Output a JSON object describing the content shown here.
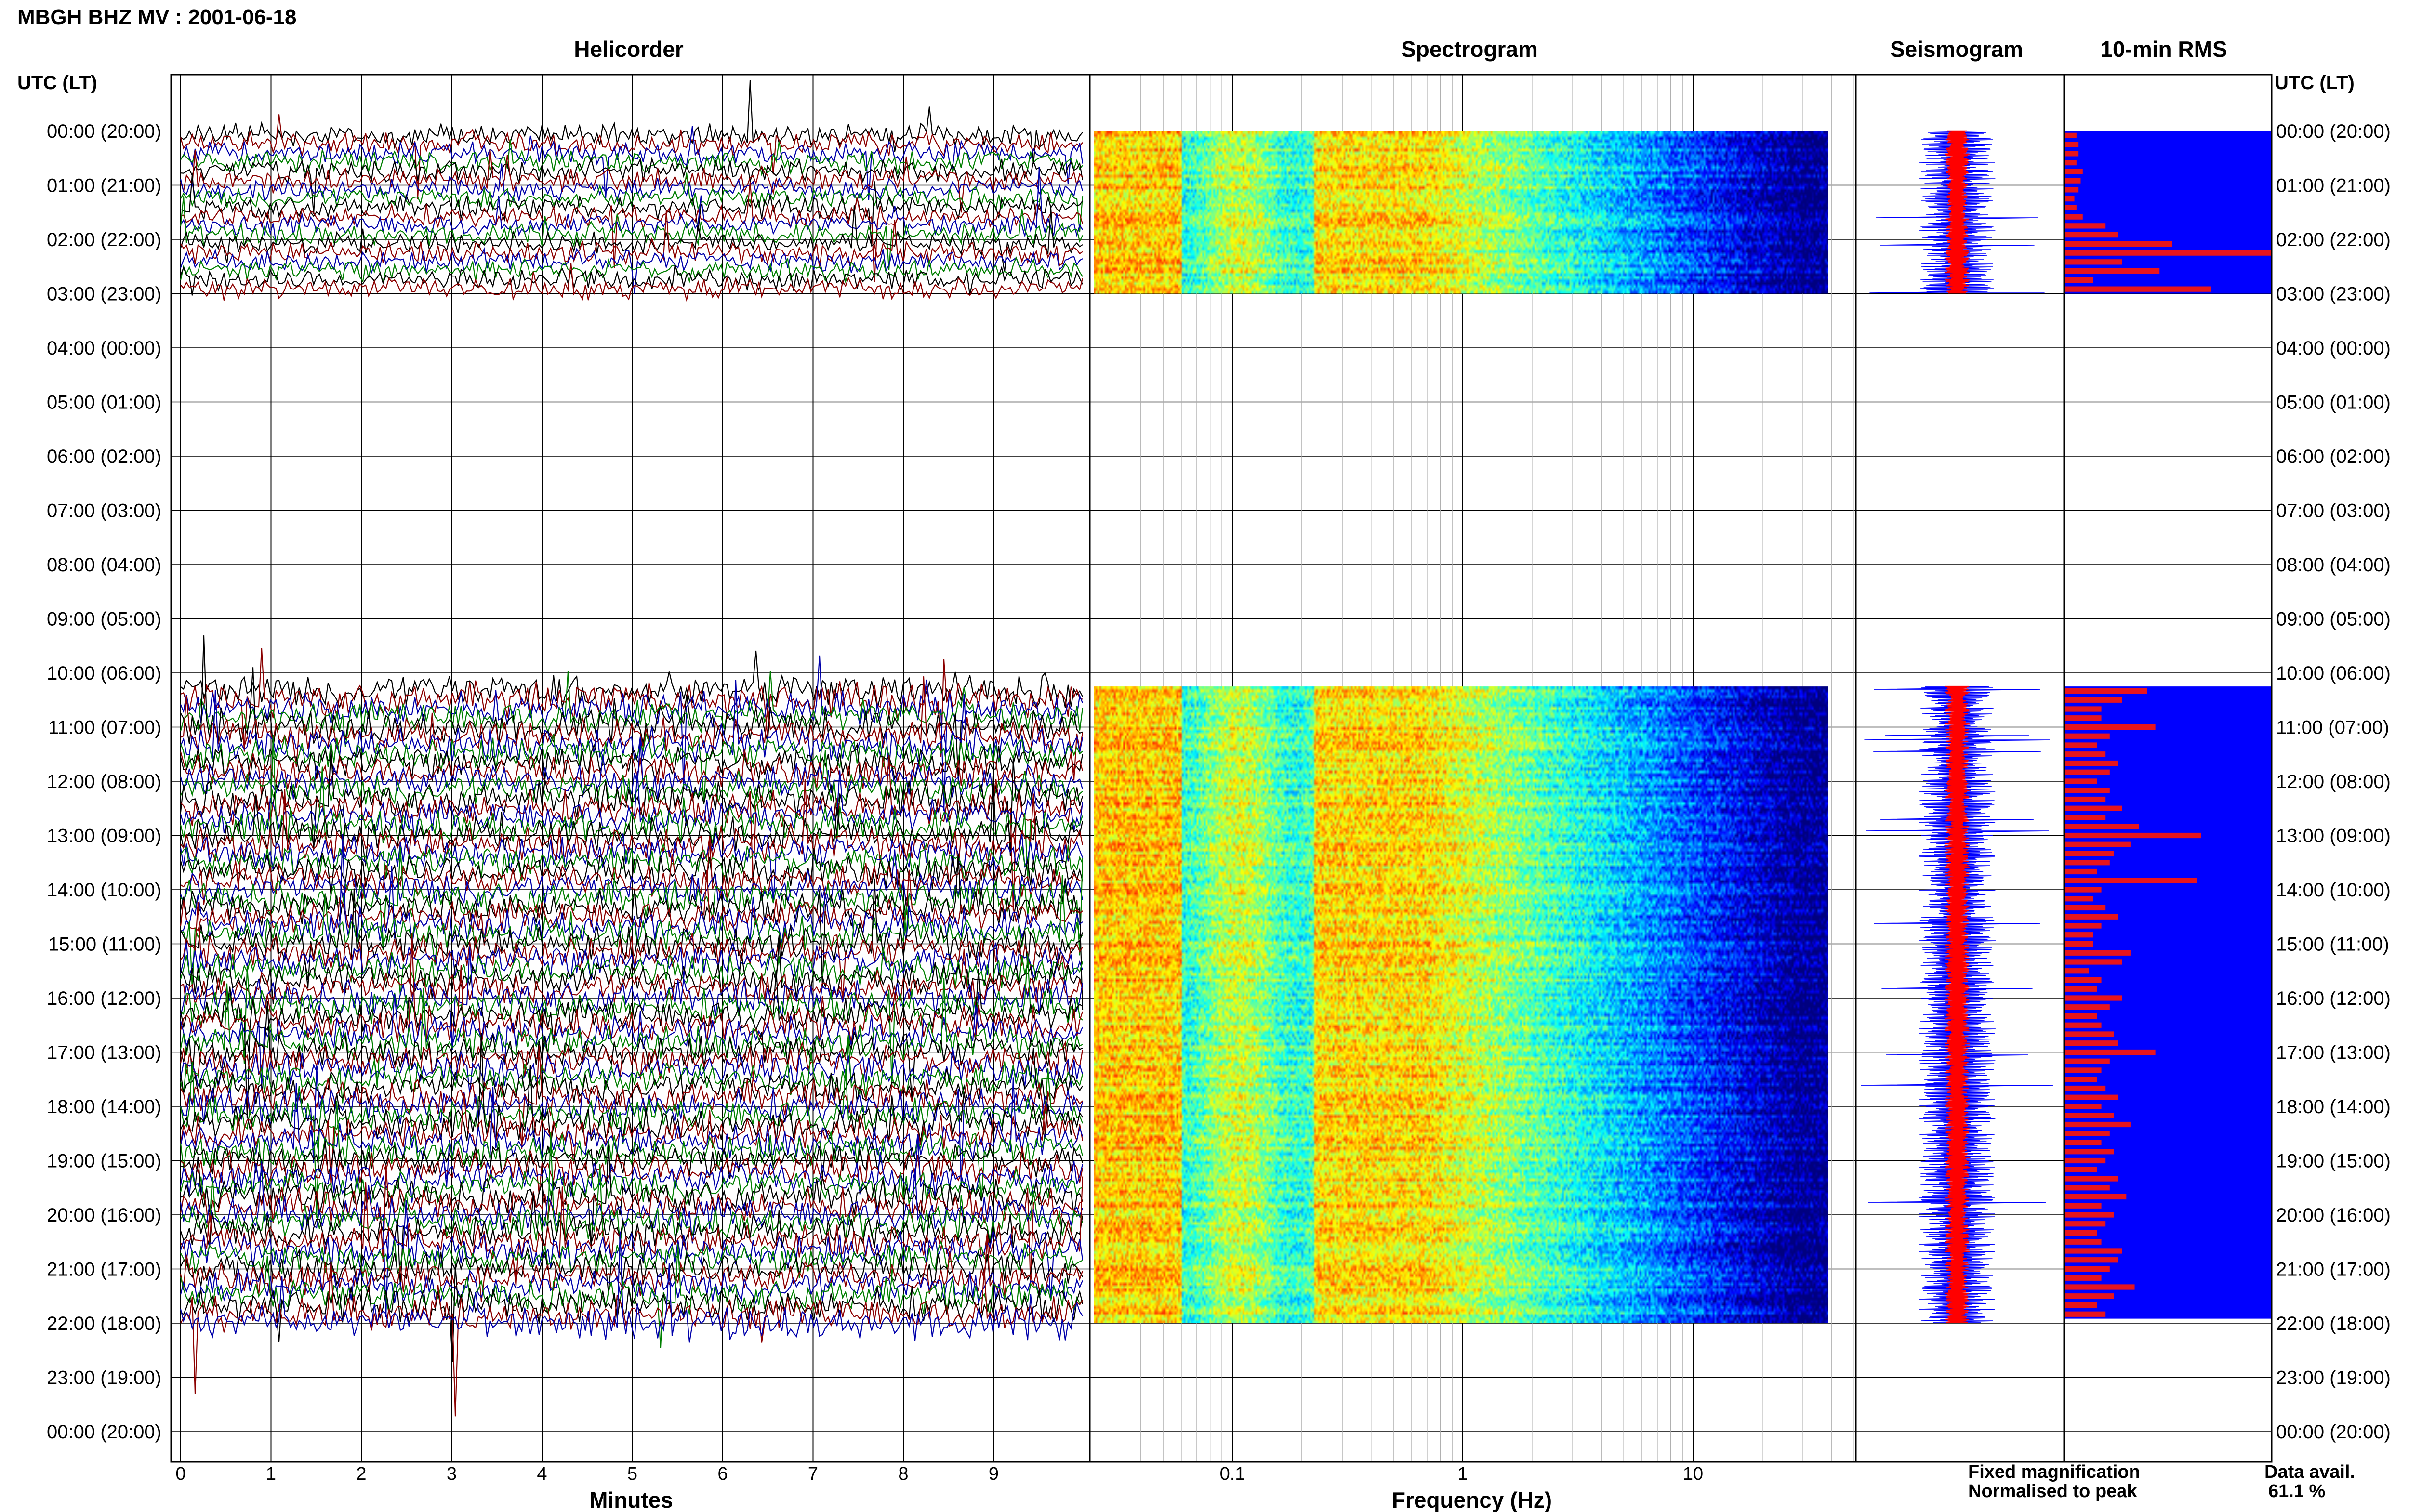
{
  "figure_title": "MBGH BHZ MV : 2001-06-18",
  "panel_titles": {
    "helicorder": "Helicorder",
    "spectrogram": "Spectrogram",
    "seismogram": "Seismogram",
    "rms": "10-min RMS"
  },
  "time_axis": {
    "header": "UTC (LT)",
    "labels": [
      "00:00 (20:00)",
      "01:00 (21:00)",
      "02:00 (22:00)",
      "03:00 (23:00)",
      "04:00 (00:00)",
      "05:00 (01:00)",
      "06:00 (02:00)",
      "07:00 (03:00)",
      "08:00 (04:00)",
      "09:00 (05:00)",
      "10:00 (06:00)",
      "11:00 (07:00)",
      "12:00 (08:00)",
      "13:00 (09:00)",
      "14:00 (10:00)",
      "15:00 (11:00)",
      "16:00 (12:00)",
      "17:00 (13:00)",
      "18:00 (14:00)",
      "19:00 (15:00)",
      "20:00 (16:00)",
      "21:00 (17:00)",
      "22:00 (18:00)",
      "23:00 (19:00)",
      "00:00 (20:00)"
    ]
  },
  "helicorder_xaxis": {
    "label": "Minutes",
    "ticks": [
      "0",
      "1",
      "2",
      "3",
      "4",
      "5",
      "6",
      "7",
      "8",
      "9"
    ]
  },
  "spectrogram_xaxis": {
    "label": "Frequency (Hz)",
    "ticks": [
      "0.1",
      "1",
      "10"
    ]
  },
  "legend": {
    "fixed": "Fixed magnification",
    "normalised": "Normalised to peak",
    "fixed_color": "#0000ff",
    "normalised_color": "#ff0000"
  },
  "data_avail": {
    "label": "Data avail.",
    "value": "61.1 %"
  },
  "colors": {
    "black": "#000000",
    "red": "#8b0000",
    "blue": "#0000aa",
    "green": "#007f00",
    "rms_bg": "#0000ff",
    "rms_bar": "#e8141c"
  },
  "chart_data": {
    "type": "helicorder",
    "date": "2001-06-18",
    "station": "MBGH BHZ MV",
    "data_availability_percent": 61.1,
    "coverage_hours_utc": [
      [
        0,
        3
      ],
      [
        10.25,
        22
      ]
    ],
    "helicorder_trace_colors": [
      "black",
      "red",
      "blue",
      "green"
    ],
    "spectrogram_freq_range_hz": [
      0.025,
      50
    ],
    "rms_10min": {
      "units": "relative",
      "segment1_start_hour": 0,
      "segment1": [
        0.06,
        0.07,
        0.07,
        0.06,
        0.09,
        0.08,
        0.07,
        0.05,
        0.06,
        0.09,
        0.2,
        0.26,
        0.52,
        1.0,
        0.28,
        0.46,
        0.14,
        0.71
      ],
      "segment2_start_hour": 10.25,
      "segment2": [
        0.4,
        0.28,
        0.18,
        0.18,
        0.44,
        0.22,
        0.16,
        0.2,
        0.26,
        0.22,
        0.16,
        0.22,
        0.2,
        0.28,
        0.2,
        0.36,
        0.66,
        0.32,
        0.24,
        0.22,
        0.16,
        0.64,
        0.18,
        0.14,
        0.2,
        0.26,
        0.18,
        0.14,
        0.14,
        0.32,
        0.28,
        0.12,
        0.18,
        0.16,
        0.28,
        0.22,
        0.16,
        0.18,
        0.24,
        0.26,
        0.44,
        0.22,
        0.18,
        0.16,
        0.2,
        0.26,
        0.18,
        0.24,
        0.32,
        0.22,
        0.18,
        0.24,
        0.2,
        0.16,
        0.26,
        0.22,
        0.3,
        0.18,
        0.24,
        0.2,
        0.16,
        0.18,
        0.28,
        0.26,
        0.22,
        0.18,
        0.34,
        0.24,
        0.16,
        0.2
      ]
    }
  }
}
